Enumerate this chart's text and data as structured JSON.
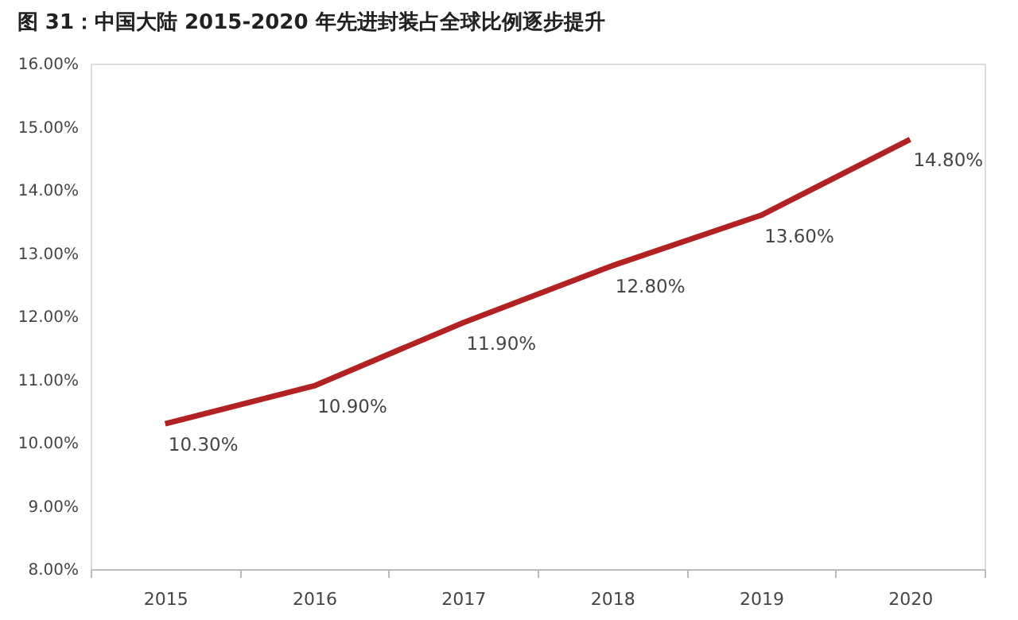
{
  "chart_data": {
    "type": "line",
    "title": "图 31：中国大陆 2015-2020 年先进封装占全球比例逐步提升",
    "categories": [
      "2015",
      "2016",
      "2017",
      "2018",
      "2019",
      "2020"
    ],
    "series": [
      {
        "color": "#b22222",
        "values": [
          10.3,
          10.9,
          11.9,
          12.8,
          13.6,
          14.8
        ],
        "value_labels": [
          "10.30%",
          "10.90%",
          "11.90%",
          "12.80%",
          "13.60%",
          "14.80%"
        ]
      }
    ],
    "ylim": [
      8,
      16
    ],
    "yticks": [
      {
        "value": 8,
        "label": "8.00%"
      },
      {
        "value": 9,
        "label": "9.00%"
      },
      {
        "value": 10,
        "label": "10.00%"
      },
      {
        "value": 11,
        "label": "11.00%"
      },
      {
        "value": 12,
        "label": "12.00%"
      },
      {
        "value": 13,
        "label": "13.00%"
      },
      {
        "value": 14,
        "label": "14.00%"
      },
      {
        "value": 15,
        "label": "15.00%"
      },
      {
        "value": 16,
        "label": "16.00%"
      }
    ],
    "grid": false,
    "marker": "none",
    "line_style": "solid"
  }
}
